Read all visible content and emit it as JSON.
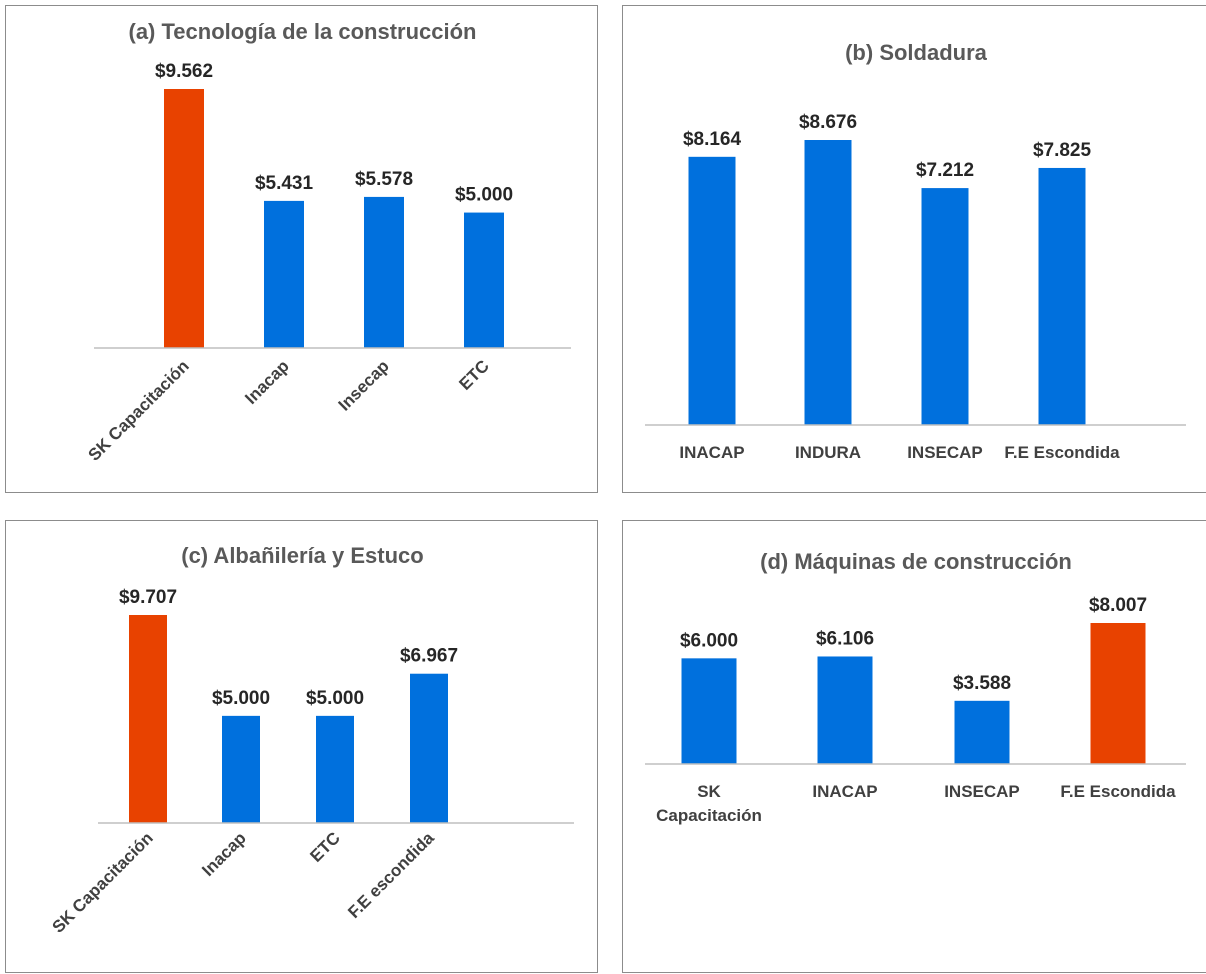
{
  "colors": {
    "bar": "#0070dd",
    "highlight": "#e84200"
  },
  "chart_data": [
    {
      "type": "bar",
      "title": "(a) Tecnología de la construcción",
      "categories": [
        "SK Capacitación",
        "Inacap",
        "Insecap",
        "ETC"
      ],
      "values": [
        9562,
        5431,
        5578,
        5000
      ],
      "value_labels": [
        "$9.562",
        "$5.431",
        "$5.578",
        "$5.000"
      ],
      "highlight": [
        true,
        false,
        false,
        false
      ],
      "ylim": [
        0,
        9562
      ],
      "grid": false,
      "legend": "none"
    },
    {
      "type": "bar",
      "title": "(b) Soldadura",
      "categories": [
        "INACAP",
        "INDURA",
        "INSECAP",
        "F.E Escondida"
      ],
      "values": [
        8164,
        8676,
        7212,
        7825
      ],
      "value_labels": [
        "$8.164",
        "$8.676",
        "$7.212",
        "$7.825"
      ],
      "highlight": [
        false,
        false,
        false,
        false
      ],
      "ylim": [
        0,
        8676
      ],
      "grid": false,
      "legend": "none"
    },
    {
      "type": "bar",
      "title": "(c) Albañilería y Estuco",
      "categories": [
        "SK Capacitación",
        "Inacap",
        "ETC",
        "F.E escondida"
      ],
      "values": [
        9707,
        5000,
        5000,
        6967
      ],
      "value_labels": [
        "$9.707",
        "$5.000",
        "$5.000",
        "$6.967"
      ],
      "highlight": [
        true,
        false,
        false,
        false
      ],
      "ylim": [
        0,
        9707
      ],
      "grid": false,
      "legend": "none"
    },
    {
      "type": "bar",
      "title": "(d) Máquinas de construcción",
      "categories": [
        "SK Capacitación",
        "INACAP",
        "INSECAP",
        "F.E Escondida"
      ],
      "category_lines": [
        [
          "SK",
          "Capacitación"
        ],
        [
          "INACAP"
        ],
        [
          "INSECAP"
        ],
        [
          "F.E Escondida"
        ]
      ],
      "values": [
        6000,
        6106,
        3588,
        8007
      ],
      "value_labels": [
        "$6.000",
        "$6.106",
        "$3.588",
        "$8.007"
      ],
      "highlight": [
        false,
        false,
        false,
        true
      ],
      "ylim": [
        0,
        8007
      ],
      "grid": false,
      "legend": "none"
    }
  ]
}
